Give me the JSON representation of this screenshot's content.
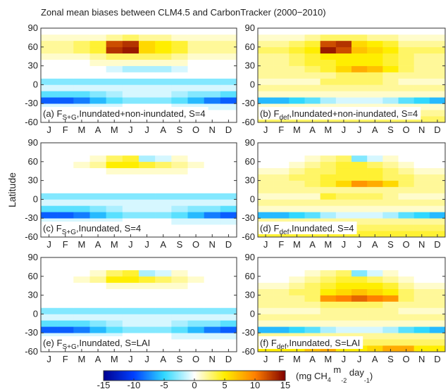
{
  "title": "Zonal mean biases between CLM4.5 and CarbonTracker (2000−2010)",
  "ylabel": "Latitude",
  "months": [
    "J",
    "F",
    "M",
    "A",
    "M",
    "J",
    "J",
    "A",
    "S",
    "O",
    "N",
    "D"
  ],
  "ylim": [
    -60,
    90
  ],
  "yticks": [
    -60,
    -30,
    0,
    30,
    60,
    90
  ],
  "lat_edges": [
    -60,
    -50,
    -40,
    -30,
    -20,
    -10,
    0,
    10,
    20,
    30,
    40,
    50,
    60,
    70,
    80,
    90
  ],
  "colorbar": {
    "lim": [
      -15,
      15
    ],
    "ticks": [
      -15,
      -10,
      -5,
      0,
      5,
      10,
      15
    ],
    "colors": [
      "#00008f",
      "#0040ff",
      "#30d8ff",
      "#ffffff",
      "#ffee00",
      "#ff8000",
      "#800000"
    ],
    "unit": [
      "(mg CH",
      "4",
      " m",
      "-2",
      " day",
      "-1",
      ")"
    ]
  },
  "chart_data": [
    {
      "type": "heatmap",
      "label": [
        "(a) F",
        "S+G",
        ",Inundated+non-inundated, S=4"
      ],
      "values": [
        [
          0,
          0,
          0,
          0,
          0,
          0,
          0,
          0,
          0,
          0,
          0,
          0
        ],
        [
          0,
          0,
          0,
          0,
          0,
          0,
          0,
          0,
          0,
          0,
          0,
          0
        ],
        [
          -1,
          -1,
          -1,
          -1,
          -1,
          0,
          0,
          0,
          -1,
          -1,
          -1,
          -1
        ],
        [
          -9,
          -9,
          -8,
          -6,
          -4,
          -3,
          -3,
          -3,
          -4,
          -6,
          -8,
          -9
        ],
        [
          -4,
          -4,
          -4,
          -3,
          -2,
          -1,
          -1,
          -1,
          -2,
          -3,
          -3,
          -4
        ],
        [
          -1,
          -1,
          -1,
          -1,
          -1,
          -1,
          -1,
          -1,
          -1,
          -1,
          -1,
          -1
        ],
        [
          -3,
          -3,
          -3,
          -3,
          -3,
          -3,
          -3,
          -3,
          -3,
          -3,
          -3,
          -3
        ],
        [
          0,
          0,
          0,
          0,
          0,
          0,
          0,
          0,
          0,
          0,
          0,
          0
        ],
        [
          0,
          0,
          0,
          0,
          -1,
          -2,
          -2,
          -2,
          -1,
          0,
          0,
          0
        ],
        [
          0,
          0,
          0,
          1,
          1,
          1,
          1,
          1,
          1,
          0,
          0,
          0
        ],
        [
          1,
          1,
          1,
          2,
          3,
          3,
          3,
          3,
          2,
          1,
          1,
          1
        ],
        [
          2,
          2,
          3,
          4,
          13,
          14,
          6,
          5,
          4,
          2,
          2,
          2
        ],
        [
          2,
          2,
          3,
          4,
          12,
          13,
          6,
          5,
          4,
          2,
          2,
          2
        ],
        [
          1,
          1,
          1,
          1,
          2,
          3,
          2,
          2,
          1,
          1,
          1,
          1
        ],
        [
          0,
          0,
          0,
          0,
          0,
          0,
          0,
          0,
          0,
          0,
          0,
          0
        ]
      ]
    },
    {
      "type": "heatmap",
      "label": [
        "(b) F",
        "def",
        ",Inundated+non-inundated, S=4"
      ],
      "values": [
        [
          3,
          3,
          3,
          3,
          3,
          3,
          3,
          3,
          3,
          3,
          3,
          3
        ],
        [
          2,
          2,
          2,
          2,
          2,
          2,
          2,
          2,
          2,
          2,
          2,
          2
        ],
        [
          1,
          1,
          1,
          1,
          1,
          1,
          1,
          1,
          1,
          1,
          1,
          1
        ],
        [
          -6,
          -6,
          -5,
          -4,
          -2,
          -1,
          -1,
          -1,
          -2,
          -4,
          -5,
          -6
        ],
        [
          1,
          1,
          1,
          1,
          1,
          1,
          1,
          1,
          1,
          1,
          1,
          1
        ],
        [
          2,
          2,
          2,
          2,
          2,
          2,
          2,
          2,
          2,
          2,
          2,
          2
        ],
        [
          1,
          1,
          1,
          1,
          3,
          3,
          3,
          3,
          2,
          1,
          1,
          1
        ],
        [
          2,
          2,
          2,
          2,
          2,
          3,
          3,
          3,
          2,
          2,
          2,
          2
        ],
        [
          2,
          2,
          2,
          3,
          4,
          6,
          8,
          7,
          5,
          3,
          2,
          2
        ],
        [
          2,
          2,
          3,
          4,
          4,
          5,
          5,
          5,
          4,
          3,
          2,
          2
        ],
        [
          2,
          2,
          3,
          4,
          5,
          5,
          5,
          5,
          4,
          3,
          2,
          2
        ],
        [
          3,
          3,
          4,
          5,
          14,
          12,
          7,
          6,
          5,
          3,
          3,
          3
        ],
        [
          2,
          2,
          3,
          4,
          12,
          13,
          6,
          5,
          4,
          2,
          2,
          2
        ],
        [
          1,
          1,
          1,
          2,
          3,
          3,
          3,
          2,
          2,
          1,
          1,
          1
        ],
        [
          0,
          0,
          0,
          0,
          0,
          0,
          0,
          0,
          0,
          0,
          0,
          0
        ]
      ]
    },
    {
      "type": "heatmap",
      "label": [
        "(c) F",
        "S+G",
        ",Inundated, S=4"
      ],
      "values": [
        [
          0,
          0,
          0,
          0,
          0,
          0,
          0,
          0,
          0,
          0,
          0,
          0
        ],
        [
          0,
          0,
          0,
          0,
          0,
          0,
          0,
          0,
          0,
          0,
          0,
          0
        ],
        [
          -1,
          -1,
          -1,
          -1,
          -1,
          0,
          0,
          0,
          -1,
          -1,
          -1,
          -1
        ],
        [
          -9,
          -9,
          -8,
          -6,
          -4,
          -3,
          -3,
          -3,
          -4,
          -6,
          -8,
          -9
        ],
        [
          -4,
          -4,
          -4,
          -3,
          -2,
          -1,
          -1,
          -1,
          -2,
          -3,
          -3,
          -4
        ],
        [
          -1,
          -1,
          -1,
          -1,
          -1,
          -1,
          -1,
          -1,
          -1,
          -1,
          -1,
          -1
        ],
        [
          -3,
          -3,
          -3,
          -3,
          -3,
          -3,
          -3,
          -3,
          -3,
          -3,
          -3,
          -3
        ],
        [
          0,
          0,
          0,
          0,
          0,
          0,
          0,
          0,
          0,
          0,
          0,
          0
        ],
        [
          0,
          0,
          0,
          0,
          0,
          0,
          0,
          0,
          0,
          0,
          0,
          0
        ],
        [
          0,
          0,
          0,
          0,
          0,
          0,
          0,
          0,
          0,
          0,
          0,
          0
        ],
        [
          0,
          0,
          0,
          0,
          1,
          1,
          1,
          1,
          1,
          0,
          0,
          0
        ],
        [
          0,
          0,
          1,
          2,
          5,
          5,
          4,
          3,
          2,
          1,
          0,
          0
        ],
        [
          0,
          0,
          0,
          1,
          3,
          4,
          -2,
          -1,
          1,
          0,
          0,
          0
        ],
        [
          0,
          0,
          0,
          0,
          0,
          0,
          0,
          0,
          0,
          0,
          0,
          0
        ],
        [
          0,
          0,
          0,
          0,
          0,
          0,
          0,
          0,
          0,
          0,
          0,
          0
        ]
      ]
    },
    {
      "type": "heatmap",
      "label": [
        "(d) F",
        "def",
        ",Inundated, S=4"
      ],
      "values": [
        [
          4,
          4,
          4,
          4,
          4,
          4,
          4,
          4,
          4,
          4,
          4,
          4
        ],
        [
          3,
          3,
          3,
          3,
          3,
          3,
          3,
          3,
          3,
          3,
          3,
          3
        ],
        [
          2,
          2,
          2,
          2,
          2,
          2,
          2,
          2,
          2,
          2,
          2,
          2
        ],
        [
          -6,
          -6,
          -5,
          -4,
          -2,
          -1,
          -1,
          -1,
          -2,
          -4,
          -5,
          -6
        ],
        [
          1,
          1,
          1,
          1,
          1,
          1,
          1,
          1,
          1,
          1,
          1,
          1
        ],
        [
          2,
          2,
          2,
          2,
          2,
          2,
          2,
          2,
          2,
          2,
          2,
          2
        ],
        [
          1,
          1,
          1,
          1,
          4,
          3,
          3,
          3,
          2,
          1,
          1,
          1
        ],
        [
          2,
          2,
          2,
          2,
          2,
          2,
          2,
          2,
          2,
          2,
          2,
          2
        ],
        [
          2,
          2,
          2,
          3,
          4,
          6,
          9,
          8,
          6,
          3,
          2,
          2
        ],
        [
          2,
          2,
          3,
          3,
          4,
          4,
          4,
          4,
          3,
          3,
          2,
          2
        ],
        [
          1,
          1,
          2,
          3,
          3,
          4,
          4,
          4,
          3,
          2,
          1,
          1
        ],
        [
          0,
          0,
          1,
          2,
          3,
          4,
          4,
          3,
          2,
          1,
          0,
          0
        ],
        [
          0,
          0,
          0,
          1,
          2,
          3,
          -3,
          -1,
          1,
          0,
          0,
          0
        ],
        [
          0,
          0,
          0,
          0,
          0,
          0,
          0,
          0,
          0,
          0,
          0,
          0
        ],
        [
          0,
          0,
          0,
          0,
          0,
          0,
          0,
          0,
          0,
          0,
          0,
          0
        ]
      ]
    },
    {
      "type": "heatmap",
      "label": [
        "(e) F",
        "S+G",
        ",Inundated, S=LAI"
      ],
      "values": [
        [
          0,
          0,
          0,
          0,
          0,
          0,
          0,
          0,
          0,
          0,
          0,
          0
        ],
        [
          0,
          0,
          0,
          0,
          0,
          0,
          0,
          0,
          0,
          0,
          0,
          0
        ],
        [
          -1,
          -1,
          -1,
          -1,
          -1,
          0,
          0,
          0,
          -1,
          -1,
          -1,
          -1
        ],
        [
          -9,
          -9,
          -8,
          -6,
          -4,
          -3,
          -3,
          -3,
          -4,
          -6,
          -8,
          -9
        ],
        [
          -4,
          -4,
          -4,
          -3,
          -2,
          -1,
          -1,
          -1,
          -2,
          -3,
          -3,
          -4
        ],
        [
          -1,
          -1,
          -1,
          -1,
          -1,
          -1,
          -1,
          -1,
          -1,
          -1,
          -1,
          -1
        ],
        [
          -3,
          -3,
          -3,
          -3,
          -3,
          -3,
          -3,
          -3,
          -3,
          -3,
          -3,
          -3
        ],
        [
          0,
          0,
          0,
          0,
          0,
          0,
          0,
          0,
          0,
          0,
          0,
          0
        ],
        [
          0,
          0,
          0,
          0,
          0,
          0,
          0,
          0,
          0,
          0,
          0,
          0
        ],
        [
          0,
          0,
          0,
          0,
          0,
          0,
          0,
          0,
          0,
          0,
          0,
          0
        ],
        [
          0,
          0,
          0,
          0,
          1,
          1,
          1,
          1,
          1,
          0,
          0,
          0
        ],
        [
          0,
          0,
          1,
          2,
          5,
          5,
          4,
          3,
          2,
          1,
          0,
          0
        ],
        [
          0,
          0,
          0,
          1,
          3,
          4,
          -2,
          -1,
          1,
          0,
          0,
          0
        ],
        [
          0,
          0,
          0,
          0,
          0,
          0,
          0,
          0,
          0,
          0,
          0,
          0
        ],
        [
          0,
          0,
          0,
          0,
          0,
          0,
          0,
          0,
          0,
          0,
          0,
          0
        ]
      ]
    },
    {
      "type": "heatmap",
      "label": [
        "(f) F",
        "def",
        ",Inundated, S=LAI"
      ],
      "values": [
        [
          5,
          5,
          5,
          7,
          8,
          5,
          5,
          6,
          8,
          8,
          5,
          5
        ],
        [
          3,
          3,
          3,
          3,
          3,
          3,
          3,
          3,
          3,
          3,
          3,
          3
        ],
        [
          2,
          2,
          2,
          2,
          2,
          2,
          2,
          2,
          2,
          2,
          2,
          2
        ],
        [
          -6,
          -6,
          -5,
          -4,
          -2,
          -1,
          -1,
          -1,
          -2,
          -4,
          -5,
          -6
        ],
        [
          1,
          1,
          1,
          1,
          1,
          1,
          1,
          1,
          1,
          1,
          1,
          1
        ],
        [
          2,
          2,
          2,
          2,
          2,
          2,
          2,
          2,
          2,
          2,
          2,
          2
        ],
        [
          1,
          1,
          1,
          1,
          2,
          2,
          2,
          2,
          2,
          1,
          1,
          1
        ],
        [
          2,
          2,
          2,
          2,
          3,
          3,
          3,
          3,
          2,
          2,
          2,
          2
        ],
        [
          2,
          2,
          2,
          3,
          9,
          10,
          11,
          10,
          9,
          3,
          2,
          2
        ],
        [
          2,
          2,
          3,
          3,
          5,
          6,
          7,
          6,
          5,
          3,
          2,
          2
        ],
        [
          1,
          1,
          2,
          3,
          4,
          5,
          5,
          5,
          4,
          2,
          1,
          1
        ],
        [
          0,
          0,
          1,
          2,
          3,
          4,
          4,
          3,
          2,
          1,
          0,
          0
        ],
        [
          0,
          0,
          0,
          1,
          2,
          3,
          -3,
          -1,
          1,
          0,
          0,
          0
        ],
        [
          0,
          0,
          0,
          0,
          0,
          0,
          0,
          0,
          0,
          0,
          0,
          0
        ],
        [
          0,
          0,
          0,
          0,
          0,
          0,
          0,
          0,
          0,
          0,
          0,
          0
        ]
      ]
    }
  ]
}
